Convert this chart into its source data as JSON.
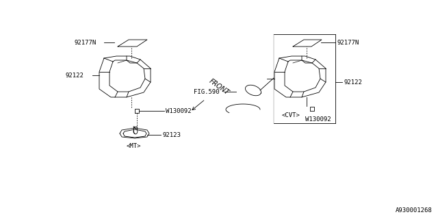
{
  "background_color": "#ffffff",
  "footnote": "A930001268",
  "front_label": "FRONT",
  "labels": {
    "92177N_left": "92177N",
    "92122_left": "92122",
    "W130092_left": "W130092",
    "92123": "92123",
    "MT": "<MT>",
    "92177N_right": "92177N",
    "92122_right": "92122",
    "W130092_right": "W130092",
    "FIG590": "FIG.590",
    "CVT": "<CVT>"
  },
  "line_color": "#000000",
  "text_color": "#000000",
  "font_size_label": 6.5,
  "font_size_footnote": 6.5
}
